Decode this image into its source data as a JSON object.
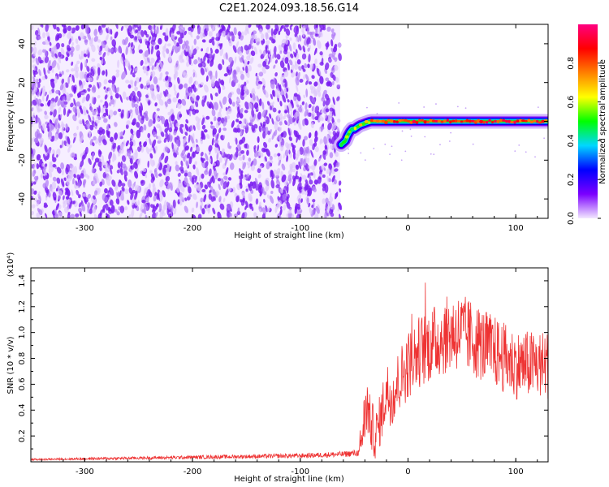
{
  "title": "C2E1.2024.093.18.56.G14",
  "colorbar": {
    "label": "Normalized spectral amplitude",
    "ticks": [
      "0.0",
      "0.2",
      "0.4",
      "0.6",
      "0.8"
    ],
    "stops": [
      "#f3e8ff",
      "#7b00ff",
      "#0000ff",
      "#00d7ff",
      "#00ff00",
      "#ffff00",
      "#ff8000",
      "#ff0000",
      "#ff0080"
    ]
  },
  "chart_data": [
    {
      "type": "heatmap",
      "title": "C2E1.2024.093.18.56.G14",
      "xlabel": "Height of straight line (km)",
      "ylabel": "Frequency (Hz)",
      "xlim": [
        -350,
        130
      ],
      "ylim": [
        -50,
        50
      ],
      "xticks": [
        "-300",
        "-200",
        "-100",
        "0",
        "100"
      ],
      "yticks": [
        "-40",
        "-20",
        "0",
        "20",
        "40"
      ],
      "noise_region": {
        "x": [
          -350,
          -63
        ],
        "y": [
          -50,
          50
        ],
        "amplitude": [
          0.1,
          0.35
        ]
      },
      "signal_ridge": {
        "x": [
          -62,
          -58,
          -55,
          -52,
          -50,
          -45,
          -40,
          -35,
          -30,
          -20,
          0,
          50,
          100,
          130
        ],
        "y": [
          -12,
          -10,
          -6,
          -4,
          -4,
          -2,
          -1,
          0,
          0,
          0,
          0,
          0,
          0,
          0
        ],
        "amplitude": [
          0.5,
          0.55,
          0.6,
          0.5,
          0.55,
          0.6,
          0.65,
          0.75,
          0.8,
          0.85,
          0.85,
          0.85,
          0.85,
          0.85
        ]
      }
    },
    {
      "type": "line",
      "xlabel": "Height of straight line (km)",
      "ylabel": "SNR (10 * v/v)",
      "yscale_label": "(x10⁴)",
      "xlim": [
        -350,
        130
      ],
      "ylim": [
        0,
        1.5
      ],
      "xticks": [
        "-300",
        "-200",
        "-100",
        "0",
        "100"
      ],
      "yticks": [
        "0.2",
        "0.4",
        "0.6",
        "0.8",
        "1.0",
        "1.2",
        "1.4"
      ],
      "series": [
        {
          "color": "#ee3333",
          "x": [
            -350,
            -300,
            -250,
            -200,
            -150,
            -100,
            -60,
            -45,
            -42,
            -38,
            -35,
            -30,
            -25,
            -20,
            -15,
            -10,
            0,
            10,
            20,
            30,
            40,
            50,
            60,
            70,
            80,
            90,
            100,
            110,
            120,
            130
          ],
          "y": [
            0.015,
            0.02,
            0.025,
            0.03,
            0.035,
            0.04,
            0.05,
            0.06,
            0.25,
            0.45,
            0.3,
            0.2,
            0.35,
            0.55,
            0.5,
            0.6,
            0.75,
            0.85,
            0.9,
            0.95,
            1.0,
            1.0,
            0.95,
            0.9,
            0.85,
            0.8,
            0.75,
            0.75,
            0.75,
            0.75
          ]
        }
      ]
    }
  ]
}
